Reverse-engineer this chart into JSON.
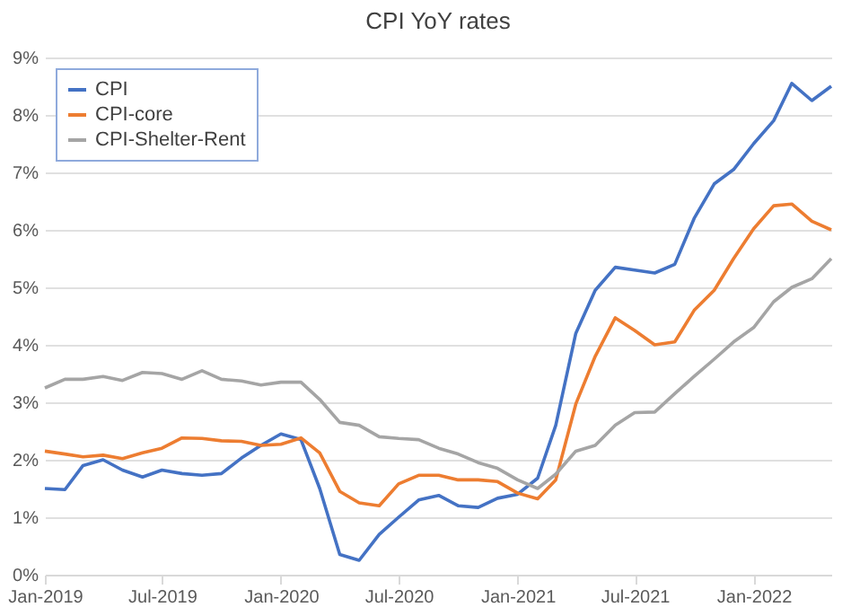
{
  "chart_data": {
    "type": "line",
    "title": "CPI YoY rates",
    "x": [
      "2019-01",
      "2019-02",
      "2019-03",
      "2019-04",
      "2019-05",
      "2019-06",
      "2019-07",
      "2019-08",
      "2019-09",
      "2019-10",
      "2019-11",
      "2019-12",
      "2020-01",
      "2020-02",
      "2020-03",
      "2020-04",
      "2020-05",
      "2020-06",
      "2020-07",
      "2020-08",
      "2020-09",
      "2020-10",
      "2020-11",
      "2020-12",
      "2021-01",
      "2021-02",
      "2021-03",
      "2021-04",
      "2021-05",
      "2021-06",
      "2021-07",
      "2021-08",
      "2021-09",
      "2021-10",
      "2021-11",
      "2021-12",
      "2022-01",
      "2022-02",
      "2022-03",
      "2022-04",
      "2022-05"
    ],
    "series": [
      {
        "name": "CPI",
        "color": "#4472c4",
        "values": [
          1.5,
          1.48,
          1.9,
          2.0,
          1.82,
          1.7,
          1.82,
          1.76,
          1.73,
          1.76,
          2.03,
          2.25,
          2.45,
          2.35,
          1.5,
          0.35,
          0.25,
          0.7,
          1.0,
          1.3,
          1.38,
          1.2,
          1.17,
          1.33,
          1.4,
          1.68,
          2.6,
          4.2,
          4.95,
          5.35,
          5.3,
          5.25,
          5.4,
          6.2,
          6.8,
          7.05,
          7.5,
          7.9,
          8.55,
          8.25,
          8.5
        ]
      },
      {
        "name": "CPI-core",
        "color": "#ed7d31",
        "values": [
          2.15,
          2.1,
          2.05,
          2.08,
          2.02,
          2.12,
          2.2,
          2.38,
          2.37,
          2.33,
          2.32,
          2.25,
          2.27,
          2.38,
          2.12,
          1.45,
          1.25,
          1.2,
          1.58,
          1.73,
          1.73,
          1.65,
          1.65,
          1.62,
          1.42,
          1.32,
          1.65,
          2.97,
          3.8,
          4.47,
          4.25,
          4.0,
          4.05,
          4.6,
          4.95,
          5.5,
          6.02,
          6.42,
          6.45,
          6.15,
          6.0
        ]
      },
      {
        "name": "CPI-Shelter-Rent",
        "color": "#a5a5a5",
        "values": [
          3.25,
          3.4,
          3.4,
          3.45,
          3.38,
          3.52,
          3.5,
          3.4,
          3.55,
          3.4,
          3.37,
          3.3,
          3.35,
          3.35,
          3.05,
          2.65,
          2.6,
          2.4,
          2.37,
          2.35,
          2.2,
          2.1,
          1.95,
          1.85,
          1.65,
          1.5,
          1.75,
          2.15,
          2.25,
          2.6,
          2.82,
          2.83,
          3.15,
          3.45,
          3.75,
          4.05,
          4.3,
          4.75,
          5.0,
          5.15,
          5.5
        ]
      }
    ],
    "xlim": [
      "2019-01",
      "2022-05"
    ],
    "xticks": [
      {
        "value": "2019-01",
        "label": "Jan-2019"
      },
      {
        "value": "2019-07",
        "label": "Jul-2019"
      },
      {
        "value": "2020-01",
        "label": "Jan-2020"
      },
      {
        "value": "2020-07",
        "label": "Jul-2020"
      },
      {
        "value": "2021-01",
        "label": "Jan-2021"
      },
      {
        "value": "2021-07",
        "label": "Jul-2021"
      },
      {
        "value": "2022-01",
        "label": "Jan-2022"
      }
    ],
    "ylim": [
      0,
      9
    ],
    "yticks": [
      {
        "value": 0,
        "label": "0%"
      },
      {
        "value": 1,
        "label": "1%"
      },
      {
        "value": 2,
        "label": "2%"
      },
      {
        "value": 3,
        "label": "3%"
      },
      {
        "value": 4,
        "label": "4%"
      },
      {
        "value": 5,
        "label": "5%"
      },
      {
        "value": 6,
        "label": "6%"
      },
      {
        "value": 7,
        "label": "7%"
      },
      {
        "value": 8,
        "label": "8%"
      },
      {
        "value": 9,
        "label": "9%"
      }
    ],
    "grid": "y",
    "legend": "top left"
  }
}
